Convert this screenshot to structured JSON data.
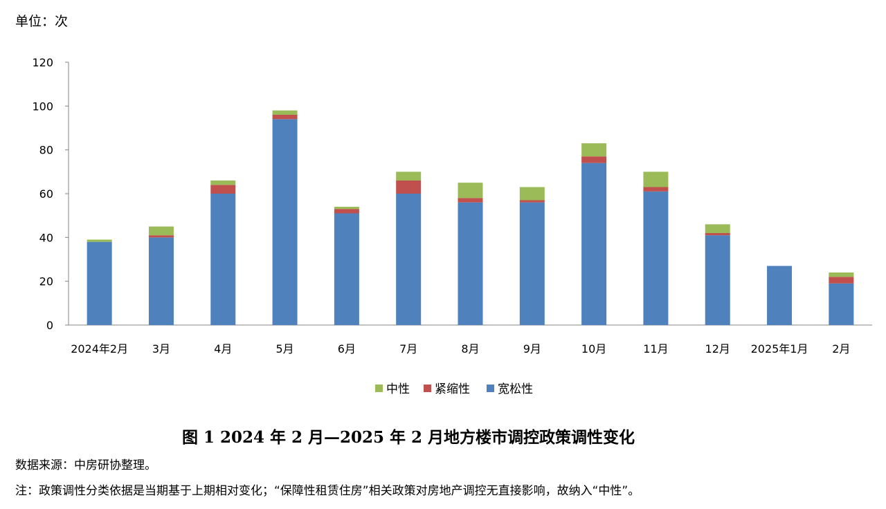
{
  "unit_label": "单位：次",
  "caption": "图 1 2024 年 2 月—2025 年 2 月地方楼市调控政策调性变化",
  "source": "数据来源：中房研协整理。",
  "note": "注：政策调性分类依据是当期基于上期相对变化；“保障性租赁住房”相关政策对房地产调控无直接影响，故纳入“中性”。",
  "chart_data": {
    "type": "bar",
    "stacked": true,
    "categories": [
      "2024年2月",
      "3月",
      "4月",
      "5月",
      "6月",
      "7月",
      "8月",
      "9月",
      "10月",
      "11月",
      "12月",
      "2025年1月",
      "2月"
    ],
    "series": [
      {
        "name": "宽松性",
        "color": "#4f81bd",
        "values": [
          38,
          40,
          60,
          94,
          51,
          60,
          56,
          56,
          74,
          61,
          41,
          27,
          19
        ]
      },
      {
        "name": "紧缩性",
        "color": "#c0504d",
        "values": [
          0,
          1,
          4,
          2,
          2,
          6,
          2,
          1,
          3,
          2,
          1,
          0,
          3
        ]
      },
      {
        "name": "中性",
        "color": "#9bbb59",
        "values": [
          1,
          4,
          2,
          2,
          1,
          4,
          7,
          6,
          6,
          7,
          4,
          0,
          2
        ]
      }
    ],
    "legend_order": [
      "中性",
      "紧缩性",
      "宽松性"
    ],
    "legend_position": "bottom",
    "ylim": [
      0,
      120
    ],
    "yticks": [
      0,
      20,
      40,
      60,
      80,
      100,
      120
    ],
    "grid": false
  }
}
